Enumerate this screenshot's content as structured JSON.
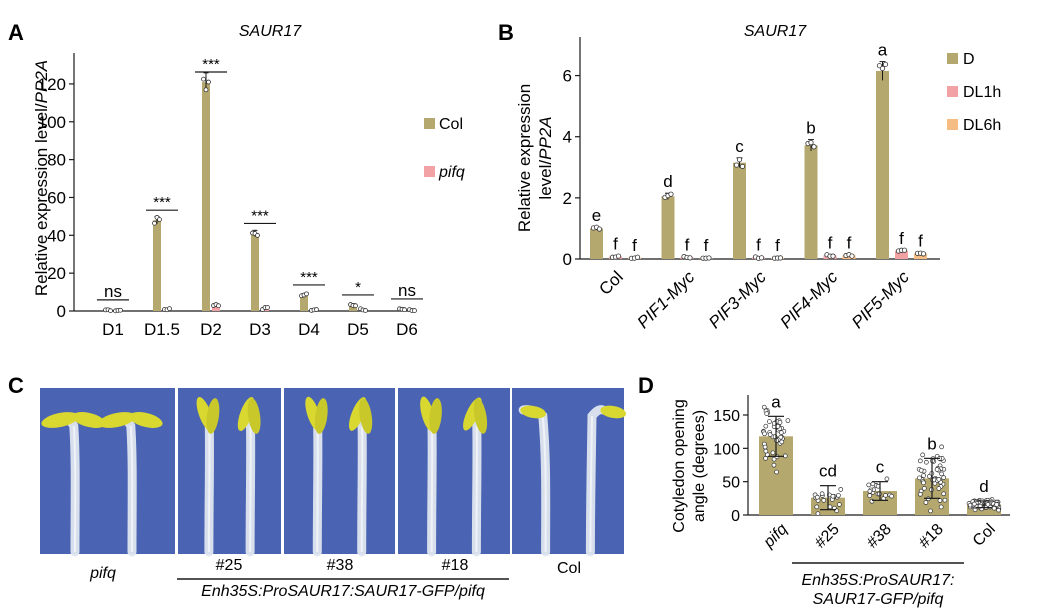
{
  "colors": {
    "bar_D": "#b5a86e",
    "bar_dl1h": "#f2a1a5",
    "bar_dl6h": "#f5bd84",
    "photo_bg": "#4a63b3",
    "stem": "#dfe6ef",
    "cotyledon": "#d8d830"
  },
  "panel_labels": {
    "A": "A",
    "B": "B",
    "C": "C",
    "D": "D"
  },
  "chart_data": [
    {
      "id": "A",
      "type": "bar",
      "title": "SAUR17",
      "ylabel": "Relative expression level/PP2A",
      "ylabel_parts": [
        "Relative expression level/",
        "PP2A"
      ],
      "ylim": [
        0,
        130
      ],
      "yticks": [
        0,
        20,
        40,
        60,
        80,
        100,
        120
      ],
      "categories": [
        "D1",
        "D1.5",
        "D2",
        "D3",
        "D4",
        "D5",
        "D6"
      ],
      "series": [
        {
          "name": "Col",
          "values": [
            0.6,
            48,
            121,
            41,
            8.5,
            3.2,
            1.1
          ]
        },
        {
          "name": "pifq",
          "values": [
            0.4,
            0.9,
            3.2,
            1.3,
            0.7,
            0.6,
            0.4
          ]
        }
      ],
      "significance": [
        "ns",
        "***",
        "***",
        "***",
        "***",
        "*",
        "ns"
      ],
      "legend": [
        {
          "name": "Col",
          "color_key": "bar_D",
          "italic": false
        },
        {
          "name": "pifq",
          "color_key": "bar_dl1h",
          "italic": true
        }
      ]
    },
    {
      "id": "B",
      "type": "bar",
      "title": "SAUR17",
      "ylabel_line1": "Relative expression",
      "ylabel_line2_parts": [
        "level/",
        "PP2A"
      ],
      "ylim": [
        0,
        7
      ],
      "yticks": [
        0,
        2,
        4,
        6
      ],
      "categories": [
        "Col",
        "PIF1-Myc",
        "PIF3-Myc",
        "PIF4-Myc",
        "PIF5-Myc"
      ],
      "series": [
        {
          "name": "D",
          "values": [
            1.0,
            2.05,
            3.15,
            3.72,
            6.15
          ],
          "letters": [
            "e",
            "d",
            "c",
            "b",
            "a"
          ]
        },
        {
          "name": "DL1h",
          "values": [
            0.08,
            0.05,
            0.05,
            0.12,
            0.27
          ],
          "letters": [
            "f",
            "f",
            "f",
            "f",
            "f"
          ]
        },
        {
          "name": "DL6h",
          "values": [
            0.04,
            0.03,
            0.03,
            0.12,
            0.18
          ],
          "letters": [
            "f",
            "f",
            "f",
            "f",
            "f"
          ]
        }
      ],
      "legend": [
        {
          "name": "D",
          "color_key": "bar_D"
        },
        {
          "name": "DL1h",
          "color_key": "bar_dl1h"
        },
        {
          "name": "DL6h",
          "color_key": "bar_dl6h"
        }
      ]
    },
    {
      "id": "D",
      "type": "bar",
      "ylabel_line1": "Cotyledon opening",
      "ylabel_line2": "angle (degrees)",
      "ylim": [
        0,
        180
      ],
      "yticks": [
        0,
        50,
        100,
        150
      ],
      "categories": [
        "pifq",
        "#25",
        "#38",
        "#18",
        "Col"
      ],
      "values": [
        118,
        26,
        36,
        55,
        16
      ],
      "letters": [
        "a",
        "cd",
        "c",
        "b",
        "d"
      ],
      "group_label_lines": [
        "Enh35S:ProSAUR17:",
        "SAUR17-GFP/pifq"
      ]
    }
  ],
  "photo_panel": {
    "panels": [
      {
        "label": "pifq",
        "italic": true
      },
      {
        "label": "#25",
        "italic": false
      },
      {
        "label": "#38",
        "italic": false
      },
      {
        "label": "#18",
        "italic": false
      },
      {
        "label": "Col",
        "italic": false
      }
    ],
    "group_label": "Enh35S:ProSAUR17:SAUR17-GFP/pifq"
  }
}
